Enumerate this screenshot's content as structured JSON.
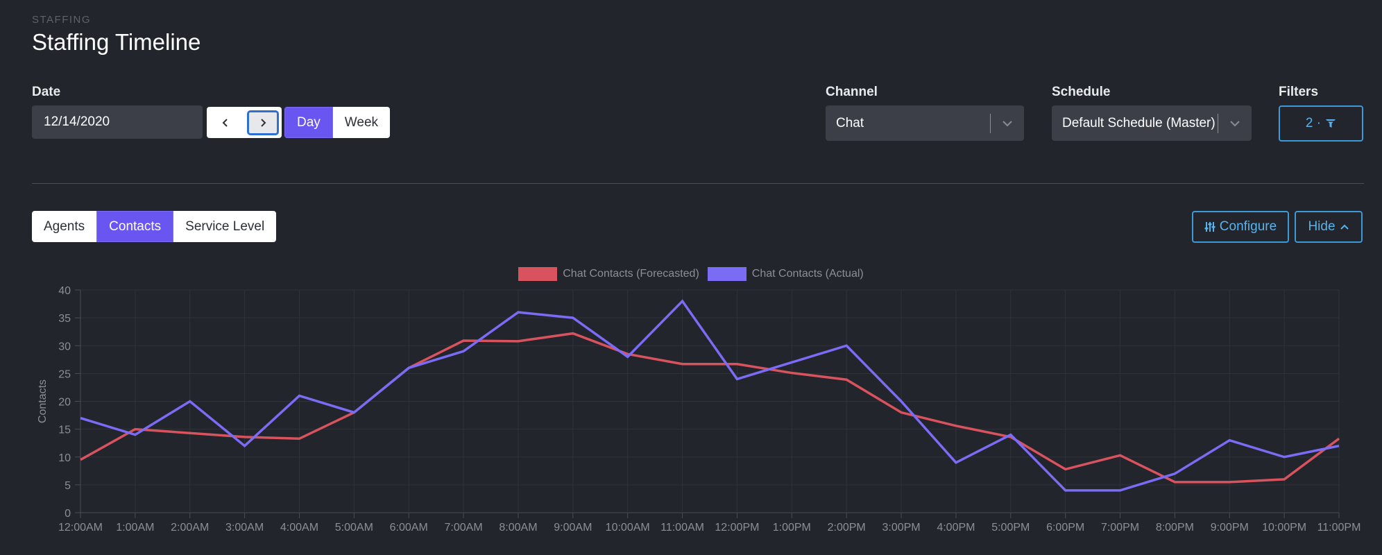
{
  "header": {
    "eyebrow": "STAFFING",
    "title": "Staffing Timeline"
  },
  "date": {
    "label": "Date",
    "value": "12/14/2020"
  },
  "range_toggle": {
    "options": [
      "Day",
      "Week"
    ],
    "selected": "Day"
  },
  "channel": {
    "label": "Channel",
    "value": "Chat"
  },
  "schedule": {
    "label": "Schedule",
    "value": "Default Schedule (Master)"
  },
  "filters": {
    "label": "Filters",
    "count_text": "2 ·",
    "icon": "filter-icon"
  },
  "view_tabs": {
    "options": [
      "Agents",
      "Contacts",
      "Service Level"
    ],
    "selected": "Contacts"
  },
  "actions": {
    "configure_label": "Configure",
    "configure_icon": "sliders-icon",
    "hide_label": "Hide",
    "hide_icon": "chevron-up-icon"
  },
  "colors": {
    "background": "#22252b",
    "accent": "#6955f0",
    "outline_blue": "#3c9ad6",
    "forecast": "#d9535f",
    "actual": "#7b6cf6"
  },
  "chart_data": {
    "type": "line",
    "ylabel": "Contacts",
    "xlabel": "",
    "ylim": [
      0,
      40
    ],
    "yticks": [
      0,
      5,
      10,
      15,
      20,
      25,
      30,
      35,
      40
    ],
    "grid": true,
    "legend_position": "top-center",
    "categories": [
      "12:00AM",
      "1:00AM",
      "2:00AM",
      "3:00AM",
      "4:00AM",
      "5:00AM",
      "6:00AM",
      "7:00AM",
      "8:00AM",
      "9:00AM",
      "10:00AM",
      "11:00AM",
      "12:00PM",
      "1:00PM",
      "2:00PM",
      "3:00PM",
      "4:00PM",
      "5:00PM",
      "6:00PM",
      "7:00PM",
      "8:00PM",
      "9:00PM",
      "10:00PM",
      "11:00PM"
    ],
    "series": [
      {
        "name": "Chat Contacts (Forecasted)",
        "color": "#d9535f",
        "values": [
          9.5,
          15,
          14.3,
          13.6,
          13.3,
          18,
          26,
          30.9,
          30.8,
          32.2,
          28.5,
          26.7,
          26.7,
          25.1,
          23.9,
          18,
          15.6,
          13.6,
          7.8,
          10.3,
          5.5,
          5.5,
          6,
          13.3
        ]
      },
      {
        "name": "Chat Contacts (Actual)",
        "color": "#7b6cf6",
        "values": [
          17,
          14,
          20,
          12,
          21,
          18,
          26,
          29,
          36,
          35,
          28,
          38,
          24,
          27,
          30,
          20,
          9,
          14,
          4,
          4,
          7,
          13,
          10,
          12
        ]
      }
    ]
  }
}
